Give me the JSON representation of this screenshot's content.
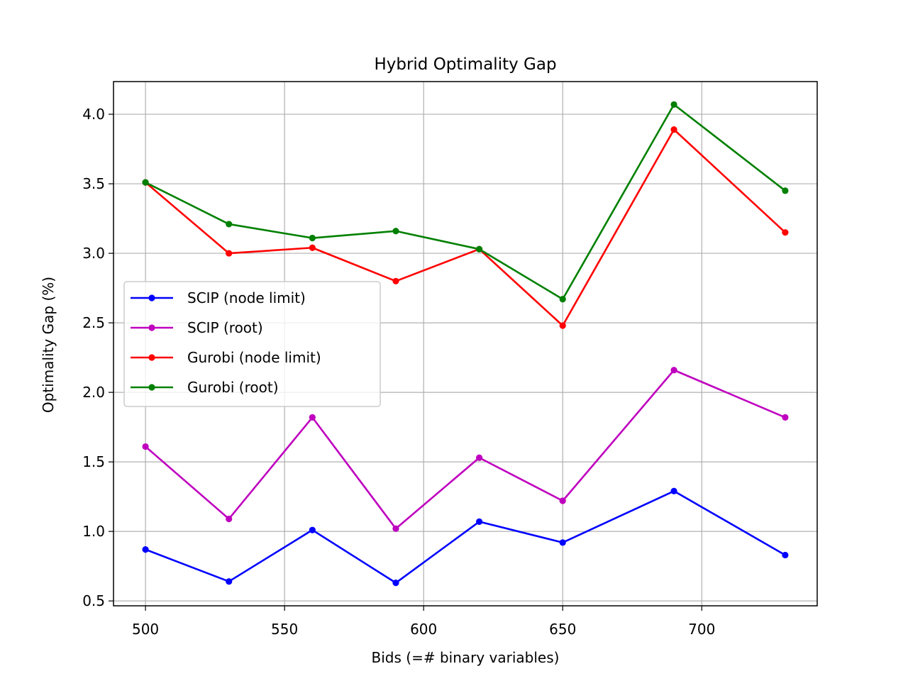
{
  "chart_data": {
    "type": "line",
    "title": "Hybrid Optimality Gap",
    "xlabel": "Bids (=# binary variables)",
    "ylabel": "Optimality Gap (%)",
    "x": [
      500,
      530,
      560,
      590,
      620,
      650,
      690,
      730
    ],
    "xlim": [
      488.5,
      741.5
    ],
    "ylim": [
      0.465,
      4.235
    ],
    "xticks": [
      500,
      550,
      600,
      650,
      700
    ],
    "xtick_labels": [
      "500",
      "550",
      "600",
      "650",
      "700"
    ],
    "yticks": [
      0.5,
      1.0,
      1.5,
      2.0,
      2.5,
      3.0,
      3.5,
      4.0
    ],
    "ytick_labels": [
      "0.5",
      "1.0",
      "1.5",
      "2.0",
      "2.5",
      "3.0",
      "3.5",
      "4.0"
    ],
    "grid": true,
    "legend_position": "center-left",
    "series": [
      {
        "name": "SCIP (node limit)",
        "color": "#0000ff",
        "values": [
          0.87,
          0.64,
          1.01,
          0.63,
          1.07,
          0.92,
          1.29,
          0.83
        ]
      },
      {
        "name": "SCIP (root)",
        "color": "#bf00bf",
        "values": [
          1.61,
          1.09,
          1.82,
          1.02,
          1.53,
          1.22,
          2.16,
          1.82
        ]
      },
      {
        "name": "Gurobi (node limit)",
        "color": "#ff0000",
        "values": [
          3.51,
          3.0,
          3.04,
          2.8,
          3.03,
          2.48,
          3.89,
          3.15
        ]
      },
      {
        "name": "Gurobi (root)",
        "color": "#008000",
        "values": [
          3.51,
          3.21,
          3.11,
          3.16,
          3.03,
          2.67,
          4.07,
          3.45
        ]
      }
    ]
  }
}
